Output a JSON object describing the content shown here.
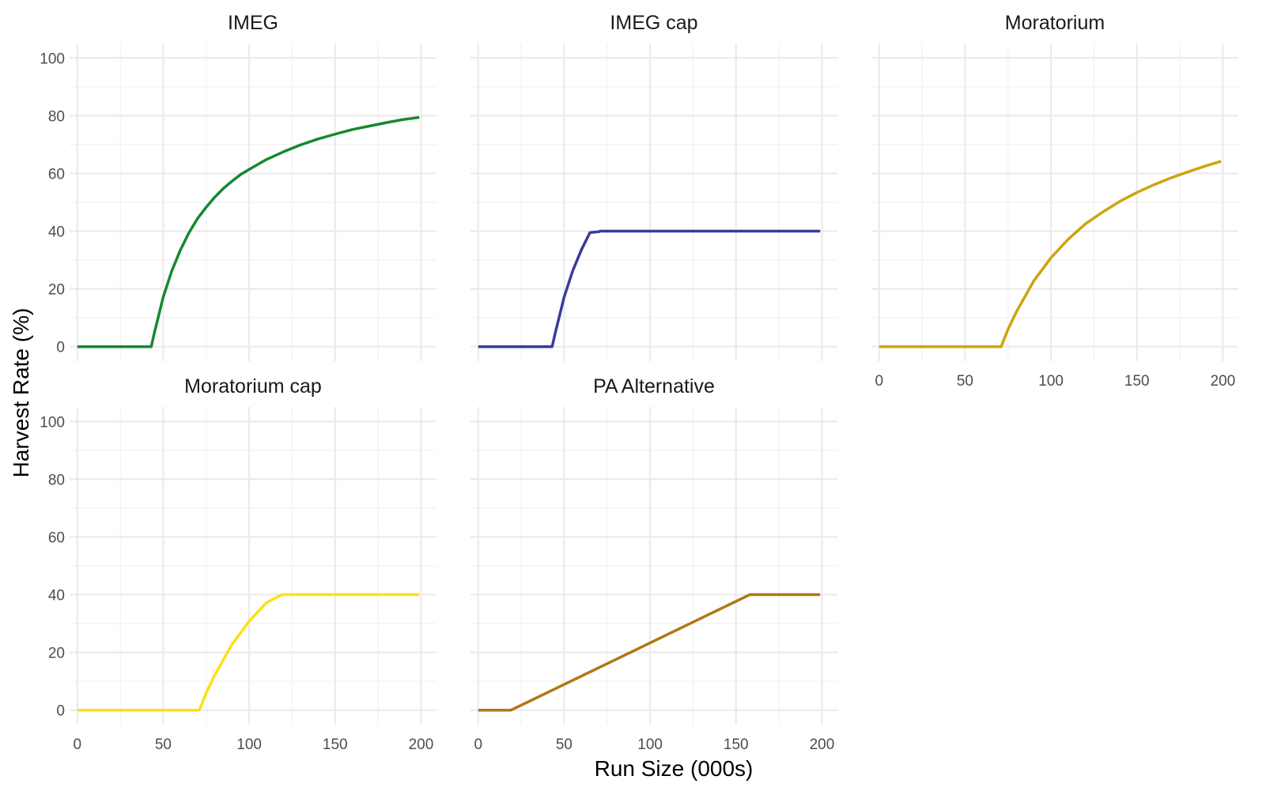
{
  "chart_data": {
    "type": "line",
    "layout": "facet_wrap",
    "xlabel": "Run Size (000s)",
    "ylabel": "Harvest Rate (%)",
    "xlim": [
      -4.5,
      209
    ],
    "ylim": [
      -5,
      105
    ],
    "x_ticks": [
      0,
      50,
      100,
      150,
      200
    ],
    "y_ticks": [
      0,
      20,
      40,
      60,
      80,
      100
    ],
    "grid": true,
    "panels": [
      {
        "title": "IMEG",
        "color": "#178830",
        "x": [
          0,
          43,
          45,
          50,
          55,
          60,
          65,
          70,
          75,
          80,
          85,
          90,
          95,
          100,
          110,
          120,
          130,
          140,
          150,
          160,
          170,
          180,
          190,
          199
        ],
        "y": [
          0,
          0,
          5.2,
          17.2,
          26.3,
          33.5,
          39.5,
          44.4,
          48.3,
          51.8,
          54.8,
          57.3,
          59.6,
          61.4,
          64.8,
          67.5,
          69.9,
          71.9,
          73.6,
          75.2,
          76.4,
          77.6,
          78.7,
          79.4
        ]
      },
      {
        "title": "IMEG cap",
        "color": "#383c9c",
        "x": [
          0,
          43,
          45,
          50,
          55,
          60,
          65,
          70,
          71,
          80,
          100,
          120,
          140,
          160,
          180,
          199
        ],
        "y": [
          0,
          0,
          5.2,
          17.2,
          26.3,
          33.5,
          39.5,
          39.8,
          40,
          40,
          40,
          40,
          40,
          40,
          40,
          40
        ]
      },
      {
        "title": "Moratorium",
        "color": "#cda40e",
        "x": [
          0,
          71,
          75,
          80,
          90,
          100,
          110,
          120,
          130,
          140,
          150,
          160,
          170,
          180,
          190,
          199
        ],
        "y": [
          0,
          0,
          6,
          12.2,
          22.8,
          30.8,
          37.2,
          42.5,
          46.6,
          50.3,
          53.4,
          56.1,
          58.5,
          60.6,
          62.6,
          64.2
        ]
      },
      {
        "title": "Moratorium cap",
        "color": "#fbe112",
        "x": [
          0,
          71,
          75,
          80,
          90,
          100,
          110,
          119,
          130,
          150,
          170,
          199
        ],
        "y": [
          0,
          0,
          6,
          12.2,
          22.8,
          30.8,
          37.2,
          40,
          40,
          40,
          40,
          40
        ]
      },
      {
        "title": "PA Alternative",
        "color": "#b07814",
        "x": [
          0,
          19,
          158,
          199
        ],
        "y": [
          0,
          0,
          40,
          40
        ]
      }
    ]
  }
}
